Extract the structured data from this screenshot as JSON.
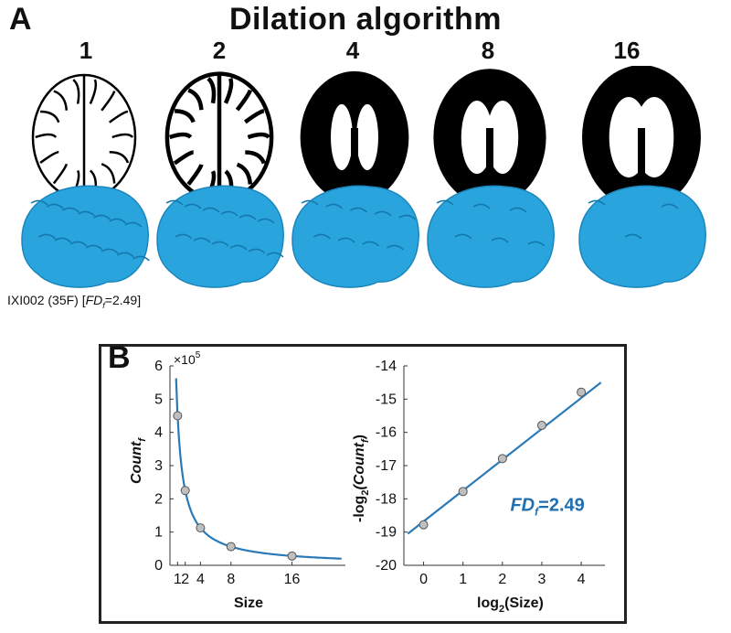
{
  "panel_a": {
    "letter": "A",
    "title": "Dilation algorithm",
    "scales": [
      "1",
      "2",
      "4",
      "8",
      "16"
    ],
    "subject_caption": {
      "id": "IXI002 (35F) [",
      "fd_symbol": "FD",
      "fd_sub": "f",
      "fd_value": "=2.49]"
    },
    "colors": {
      "mask": "#000000",
      "surface": "#2aa4dc"
    }
  },
  "panel_b": {
    "letter": "B"
  },
  "chart_data": [
    {
      "type": "scatter",
      "title": "",
      "xlabel": "Size",
      "ylabel": "Count",
      "ylabel_sub": "f",
      "yscale_label": "×10",
      "yscale_exp": "5",
      "x_ticks": [
        1,
        2,
        4,
        8,
        16
      ],
      "x_tick_labels": [
        "1",
        "2",
        "4",
        "8",
        "16"
      ],
      "y_ticks": [
        0,
        1,
        2,
        3,
        4,
        5,
        6
      ],
      "y_tick_labels": [
        "0",
        "1",
        "2",
        "3",
        "4",
        "5",
        "6"
      ],
      "xlim": [
        0,
        23
      ],
      "ylim": [
        0,
        6
      ],
      "points": [
        {
          "x": 1,
          "y": 4.5
        },
        {
          "x": 2,
          "y": 2.25
        },
        {
          "x": 4,
          "y": 1.125
        },
        {
          "x": 8,
          "y": 0.5625
        },
        {
          "x": 16,
          "y": 0.28
        }
      ],
      "fit_curve": {
        "x_start": 0.8,
        "x_end": 22.5
      },
      "colors": {
        "line": "#2b7ab8",
        "marker": "#bfbfbf"
      }
    },
    {
      "type": "scatter",
      "title": "",
      "xlabel": "log",
      "xlabel_sub": "2",
      "xlabel_suffix": "(Size)",
      "ylabel": "-log",
      "ylabel_sub": "2",
      "ylabel_suffix": "(Count",
      "ylabel_sub2": "f",
      "ylabel_close": ")",
      "x_ticks": [
        0,
        1,
        2,
        3,
        4
      ],
      "x_tick_labels": [
        "0",
        "1",
        "2",
        "3",
        "4"
      ],
      "y_ticks": [
        -20,
        -19,
        -18,
        -17,
        -16,
        -15,
        -14
      ],
      "y_tick_labels": [
        "-20",
        "-19",
        "-18",
        "-17",
        "-16",
        "-15",
        "-14"
      ],
      "xlim": [
        -0.5,
        4.6
      ],
      "ylim": [
        -20,
        -14
      ],
      "points": [
        {
          "x": 0,
          "y": -18.78
        },
        {
          "x": 1,
          "y": -17.78
        },
        {
          "x": 2,
          "y": -16.79
        },
        {
          "x": 3,
          "y": -15.79
        },
        {
          "x": 4,
          "y": -14.79
        }
      ],
      "fit_line": {
        "x1": -0.4,
        "y1": -19.05,
        "x2": 4.5,
        "y2": -14.5
      },
      "annotation": {
        "symbol": "FD",
        "sub": "f",
        "value": "=2.49",
        "x": 2.2,
        "y": -18.2
      },
      "colors": {
        "line": "#2b7ab8",
        "marker": "#bfbfbf",
        "annotation": "#1f6fb0"
      }
    }
  ]
}
